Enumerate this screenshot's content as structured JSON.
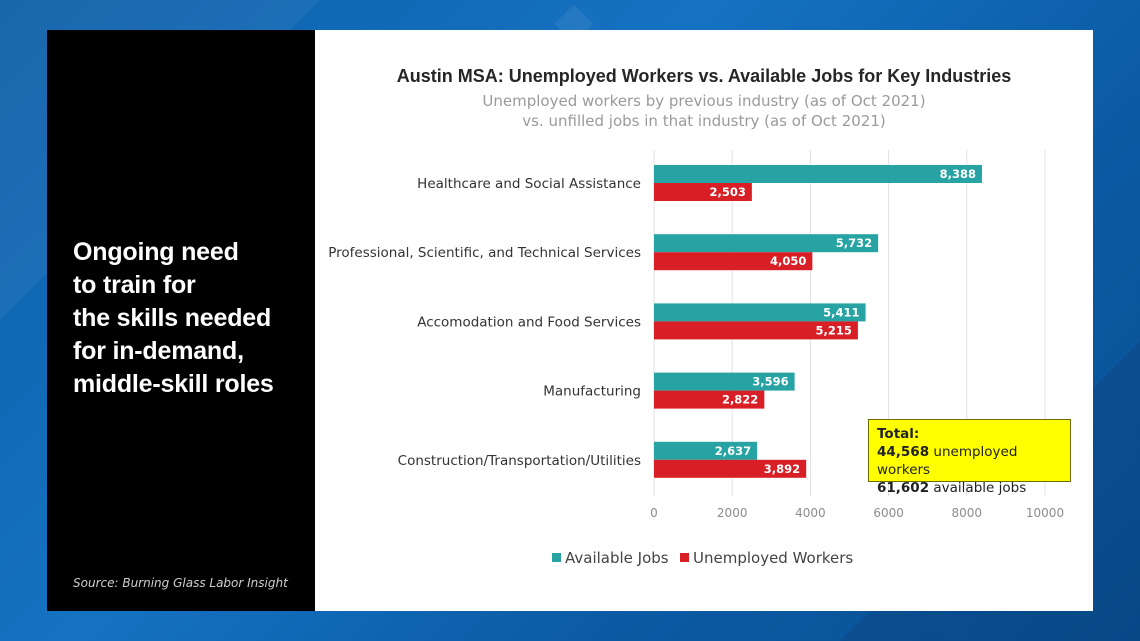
{
  "headline": [
    "Ongoing need",
    "to train for",
    "the skills needed",
    "for in-demand,",
    "middle-skill roles"
  ],
  "source": "Source: Burning Glass Labor Insight",
  "callout": {
    "title": "Total:",
    "unemployed_value": "44,568",
    "unemployed_text": " unemployed workers",
    "jobs_value": "61,602",
    "jobs_text": " available jobs"
  },
  "colors": {
    "available": "#27a3a3",
    "unemployed": "#d81f26",
    "grid": "#e0e0e0"
  },
  "chart_data": {
    "type": "bar",
    "orientation": "horizontal",
    "title": "Austin MSA: Unemployed Workers vs. Available Jobs for Key Industries",
    "subtitle": [
      "Unemployed workers by previous industry (as of Oct 2021)",
      "vs. unfilled jobs in that industry (as of Oct 2021)"
    ],
    "categories": [
      "Healthcare and Social Assistance",
      "Professional, Scientific, and Technical Services",
      "Accomodation and Food Services",
      "Manufacturing",
      "Construction/Transportation/Utilities"
    ],
    "series": [
      {
        "name": "Available Jobs",
        "values": [
          8388,
          5732,
          5411,
          3596,
          2637
        ],
        "labels": [
          "8,388",
          "5,732",
          "5,411",
          "3,596",
          "2,637"
        ]
      },
      {
        "name": "Unemployed Workers",
        "values": [
          2503,
          4050,
          5215,
          2822,
          3892
        ],
        "labels": [
          "2,503",
          "4,050",
          "5,215",
          "2,822",
          "3,892"
        ]
      }
    ],
    "xlim": [
      0,
      10000
    ],
    "xticks": [
      0,
      2000,
      4000,
      6000,
      8000,
      10000
    ],
    "grid": true,
    "legend_position": "bottom"
  }
}
